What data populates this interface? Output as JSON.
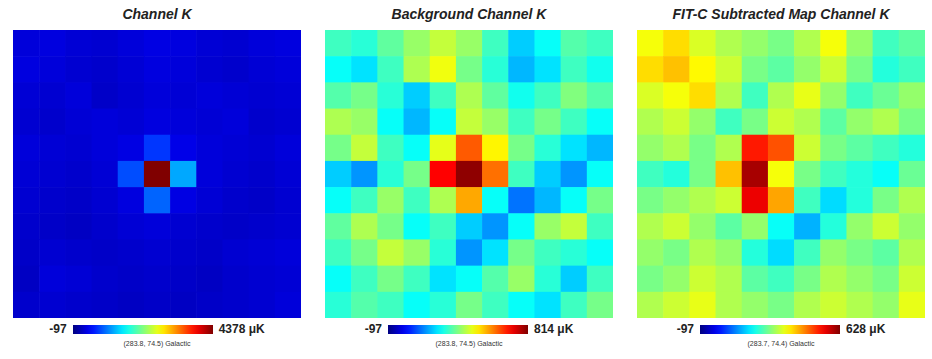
{
  "chart_data": [
    {
      "type": "heatmap",
      "title": "Channel K",
      "caption": "(283.8, 74.5) Galactic",
      "tick_labels": false,
      "color_range": [
        -97,
        4378
      ],
      "color_ticks": [
        -97,
        {
          "value": 4378,
          "label": "4378 μK"
        }
      ],
      "cells": [
        [
          300,
          320,
          280,
          260,
          300,
          340,
          320,
          280,
          260,
          300,
          320
        ],
        [
          320,
          300,
          260,
          240,
          280,
          320,
          300,
          260,
          240,
          280,
          300
        ],
        [
          280,
          260,
          300,
          220,
          260,
          300,
          280,
          300,
          280,
          260,
          280
        ],
        [
          260,
          240,
          280,
          300,
          280,
          320,
          300,
          280,
          300,
          240,
          260
        ],
        [
          300,
          280,
          260,
          300,
          340,
          700,
          360,
          300,
          280,
          260,
          300
        ],
        [
          280,
          260,
          240,
          280,
          800,
          4378,
          1200,
          300,
          260,
          240,
          280
        ],
        [
          260,
          240,
          220,
          260,
          320,
          900,
          340,
          280,
          240,
          220,
          260
        ],
        [
          240,
          220,
          200,
          240,
          280,
          300,
          260,
          240,
          220,
          240,
          260
        ],
        [
          220,
          260,
          240,
          220,
          240,
          260,
          240,
          220,
          260,
          280,
          300
        ],
        [
          200,
          300,
          280,
          240,
          220,
          240,
          220,
          200,
          240,
          260,
          280
        ],
        [
          240,
          260,
          240,
          220,
          200,
          220,
          200,
          220,
          240,
          260,
          300
        ]
      ]
    },
    {
      "type": "heatmap",
      "title": "Background Channel K",
      "caption": "(283.8, 74.5) Galactic",
      "tick_labels": false,
      "color_range": [
        -97,
        814
      ],
      "color_ticks": [
        -97,
        {
          "value": 814,
          "label": "814 μK"
        }
      ],
      "cells": [
        [
          300,
          280,
          330,
          380,
          420,
          380,
          300,
          200,
          250,
          320,
          300
        ],
        [
          250,
          220,
          300,
          400,
          460,
          350,
          280,
          180,
          220,
          300,
          260
        ],
        [
          320,
          350,
          280,
          200,
          300,
          400,
          330,
          260,
          300,
          360,
          320
        ],
        [
          400,
          380,
          250,
          180,
          250,
          420,
          380,
          300,
          350,
          300,
          250
        ],
        [
          350,
          420,
          300,
          250,
          450,
          620,
          480,
          350,
          280,
          220,
          180
        ],
        [
          200,
          150,
          280,
          350,
          700,
          800,
          600,
          300,
          200,
          150,
          250
        ],
        [
          250,
          300,
          380,
          300,
          400,
          550,
          250,
          120,
          180,
          250,
          350
        ],
        [
          330,
          400,
          350,
          250,
          300,
          200,
          150,
          250,
          380,
          420,
          300
        ],
        [
          300,
          350,
          420,
          380,
          280,
          150,
          220,
          350,
          300,
          280,
          250
        ],
        [
          250,
          300,
          350,
          300,
          220,
          250,
          320,
          380,
          280,
          200,
          300
        ],
        [
          280,
          320,
          300,
          250,
          280,
          350,
          300,
          250,
          220,
          300,
          350
        ]
      ]
    },
    {
      "type": "heatmap",
      "title": "FIT-C Subtracted Map Channel K",
      "caption": "(283.7, 74.4) Galactic",
      "tick_labels": false,
      "color_range": [
        -97,
        628
      ],
      "color_ticks": [
        -97,
        {
          "value": 628,
          "label": "628 μK"
        }
      ],
      "cells": [
        [
          350,
          380,
          330,
          300,
          280,
          260,
          300,
          350,
          280,
          220,
          240
        ],
        [
          380,
          400,
          360,
          320,
          260,
          240,
          280,
          320,
          260,
          200,
          220
        ],
        [
          330,
          350,
          380,
          300,
          220,
          300,
          340,
          280,
          220,
          250,
          280
        ],
        [
          300,
          320,
          280,
          220,
          260,
          320,
          300,
          240,
          280,
          300,
          260
        ],
        [
          280,
          300,
          260,
          300,
          520,
          480,
          320,
          260,
          240,
          220,
          200
        ],
        [
          220,
          200,
          260,
          400,
          600,
          350,
          260,
          220,
          200,
          180,
          250
        ],
        [
          260,
          280,
          300,
          320,
          550,
          420,
          220,
          150,
          200,
          260,
          300
        ],
        [
          300,
          320,
          280,
          240,
          280,
          180,
          120,
          200,
          280,
          320,
          280
        ],
        [
          280,
          260,
          300,
          280,
          200,
          150,
          220,
          280,
          260,
          240,
          300
        ],
        [
          260,
          280,
          320,
          300,
          240,
          220,
          260,
          300,
          280,
          260,
          320
        ],
        [
          300,
          320,
          340,
          300,
          280,
          260,
          300,
          320,
          300,
          280,
          340
        ]
      ]
    }
  ]
}
